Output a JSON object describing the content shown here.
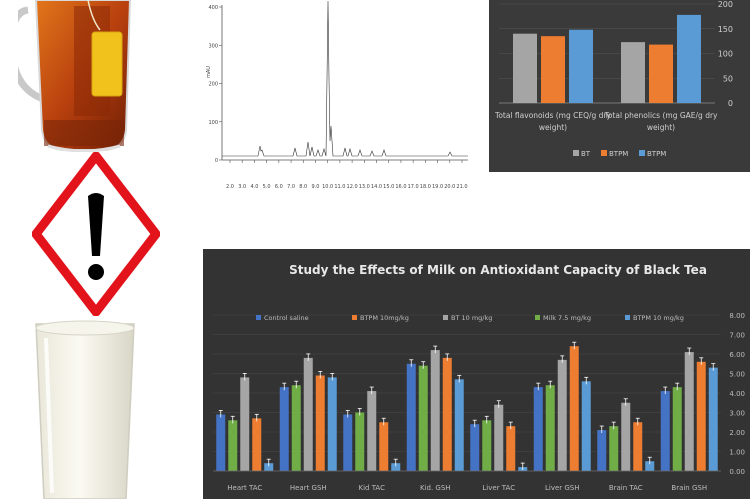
{
  "icons": {
    "tea": "tea-mug-icon",
    "hazard": "exclamation-hazard-icon",
    "milk": "milk-glass-icon"
  },
  "chromatogram": {
    "y_ticks": [
      "400",
      "300",
      "200",
      "100",
      "0"
    ],
    "x_ticks": [
      "2.0",
      "3.0",
      "4.0",
      "5.0",
      "6.0",
      "7.0",
      "8.0",
      "9.0",
      "10.0",
      "11.0",
      "12.0",
      "13.0",
      "14.0",
      "15.0",
      "16.0",
      "17.0",
      "18.0",
      "19.0",
      "20.0",
      "21.0"
    ],
    "ylabel": "mAU"
  },
  "chart_data": [
    {
      "type": "bar",
      "categories": [
        "Total flavonoids (mg CEQ/g dry weight)",
        "Total phenolics (mg GAE/g dry weight)"
      ],
      "category_lines": [
        [
          "Total flavonoids (mg CEQ/g dry",
          "weight)"
        ],
        [
          "Total phenolics (mg GAE/g dry",
          "weight)"
        ]
      ],
      "series": [
        {
          "name": "BT",
          "color": "#a5a5a5",
          "values": [
            140,
            123
          ]
        },
        {
          "name": "BTPM",
          "color": "#ed7d31",
          "values": [
            135,
            118
          ]
        },
        {
          "name": "BTPM",
          "color": "#5b9bd5",
          "values": [
            148,
            178
          ]
        }
      ],
      "legend_labels": [
        "BT",
        "BTPM",
        "BTPM"
      ],
      "ylim": [
        0,
        200
      ],
      "y_ticks": [
        "0",
        "50",
        "100",
        "150",
        "200"
      ],
      "legend": "bottom"
    },
    {
      "type": "bar",
      "title": "Study the Effects of Milk on Antioxidant Capacity of Black Tea",
      "categories": [
        "Heart TAC",
        "Heart GSH",
        "Kid TAC",
        "Kid. GSH",
        "Liver TAC",
        "Liver GSH",
        "Brain TAC",
        "Brain GSH"
      ],
      "series": [
        {
          "name": "Control saline",
          "color": "#4472c4",
          "values": [
            2.9,
            4.3,
            2.9,
            5.5,
            2.4,
            4.3,
            2.1,
            4.1
          ]
        },
        {
          "name": "Milk 7.5 mg/kg",
          "color": "#70ad47",
          "values": [
            2.6,
            4.4,
            3.0,
            5.4,
            2.6,
            4.4,
            2.3,
            4.3
          ]
        },
        {
          "name": "BT 10 mg/kg",
          "color": "#a5a5a5",
          "values": [
            4.8,
            5.8,
            4.1,
            6.2,
            3.4,
            5.7,
            3.5,
            6.1
          ]
        },
        {
          "name": "BTPM 10mg/kg",
          "color": "#ed7d31",
          "values": [
            2.7,
            4.9,
            2.5,
            5.8,
            2.3,
            6.4,
            2.5,
            5.6
          ]
        },
        {
          "name": "BTPM 10 mg/kg",
          "color": "#5b9bd5",
          "values": [
            0.4,
            4.8,
            0.4,
            4.7,
            0.2,
            4.6,
            0.5,
            5.3
          ]
        }
      ],
      "legend_labels": [
        "Control saline",
        "Milk 7.5 mg/kg",
        "BT 10 mg/kg",
        "BTPM 10mg/kg",
        "BTPM 10 mg/kg"
      ],
      "legend_order": [
        0,
        3,
        2,
        1,
        4
      ],
      "ylim": [
        0,
        8
      ],
      "y_ticks": [
        "0.00",
        "1.00",
        "2.00",
        "3.00",
        "4.00",
        "5.00",
        "6.00",
        "7.00",
        "8.00"
      ],
      "legend": "top"
    }
  ]
}
